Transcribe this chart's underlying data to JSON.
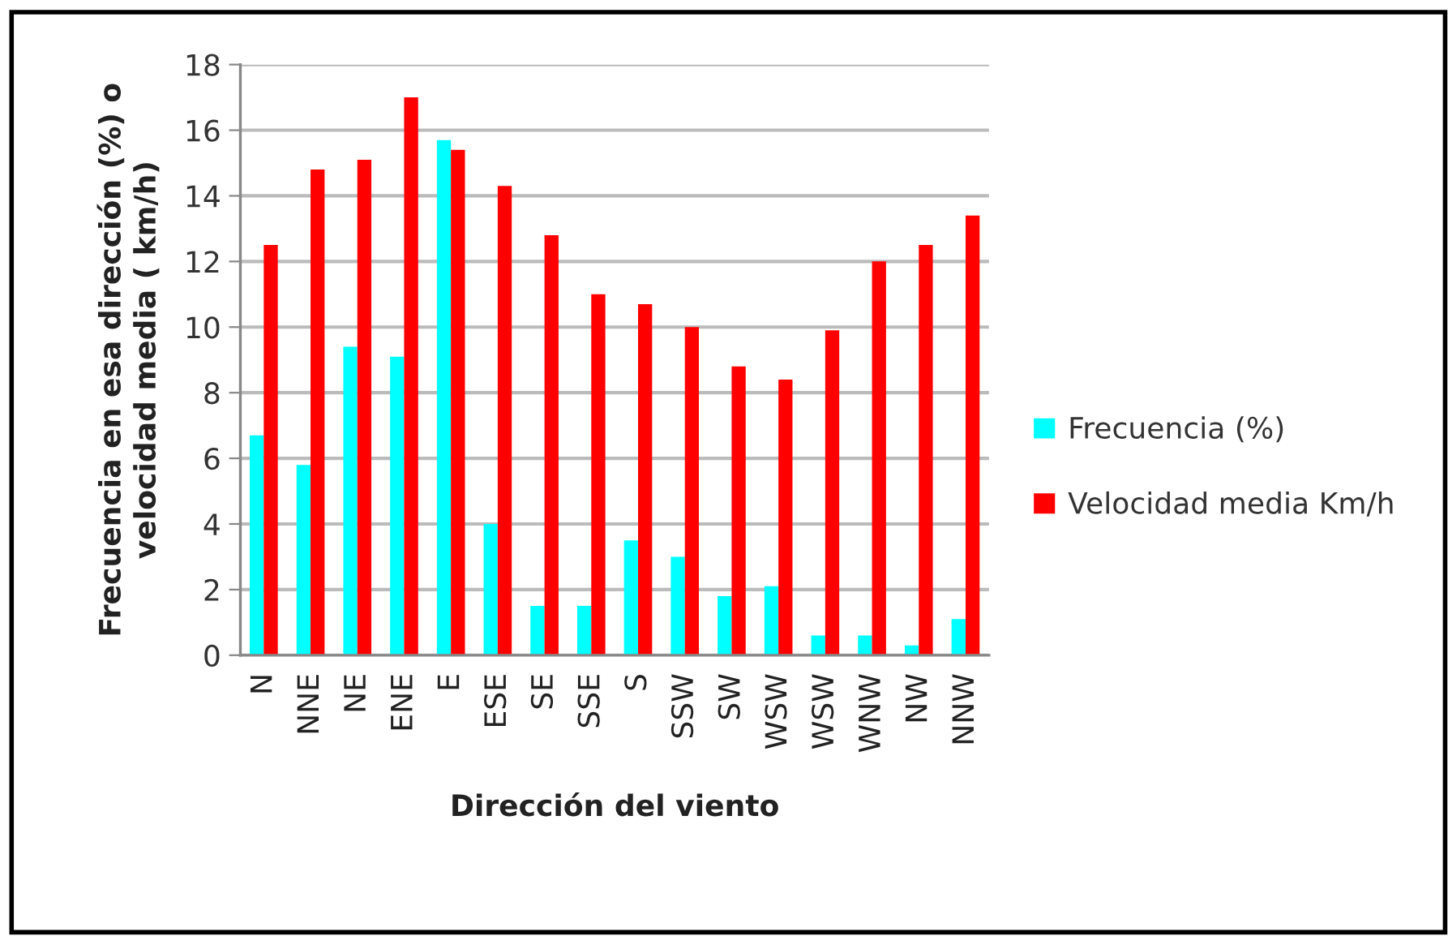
{
  "chart_data": {
    "type": "bar",
    "xlabel": "Dirección del viento",
    "ylabel": "Frecuencia en esa dirección (%) o\nvelocidad media ( km/h)",
    "categories": [
      "N",
      "NNE",
      "NE",
      "ENE",
      "E",
      "ESE",
      "SE",
      "SSE",
      "S",
      "SSW",
      "SW",
      "WSW",
      "WSW",
      "WNW",
      "NW",
      "NNW"
    ],
    "series": [
      {
        "name": "Frecuencia (%)",
        "color": "#00ffff",
        "values": [
          6.7,
          5.8,
          9.4,
          9.1,
          15.7,
          4.0,
          1.5,
          1.5,
          3.5,
          3.0,
          1.8,
          2.1,
          0.6,
          0.6,
          0.3,
          1.1
        ]
      },
      {
        "name": "Velocidad media Km/h",
        "color": "#ff0000",
        "values": [
          12.5,
          14.8,
          15.1,
          17.0,
          15.4,
          14.3,
          12.8,
          11.0,
          10.7,
          10.0,
          8.8,
          8.4,
          9.9,
          12.0,
          12.5,
          13.4
        ]
      }
    ],
    "ylim": [
      0,
      18
    ],
    "yticks": [
      0,
      2,
      4,
      6,
      8,
      10,
      12,
      14,
      16,
      18
    ],
    "grid": "y",
    "legend": "right"
  }
}
